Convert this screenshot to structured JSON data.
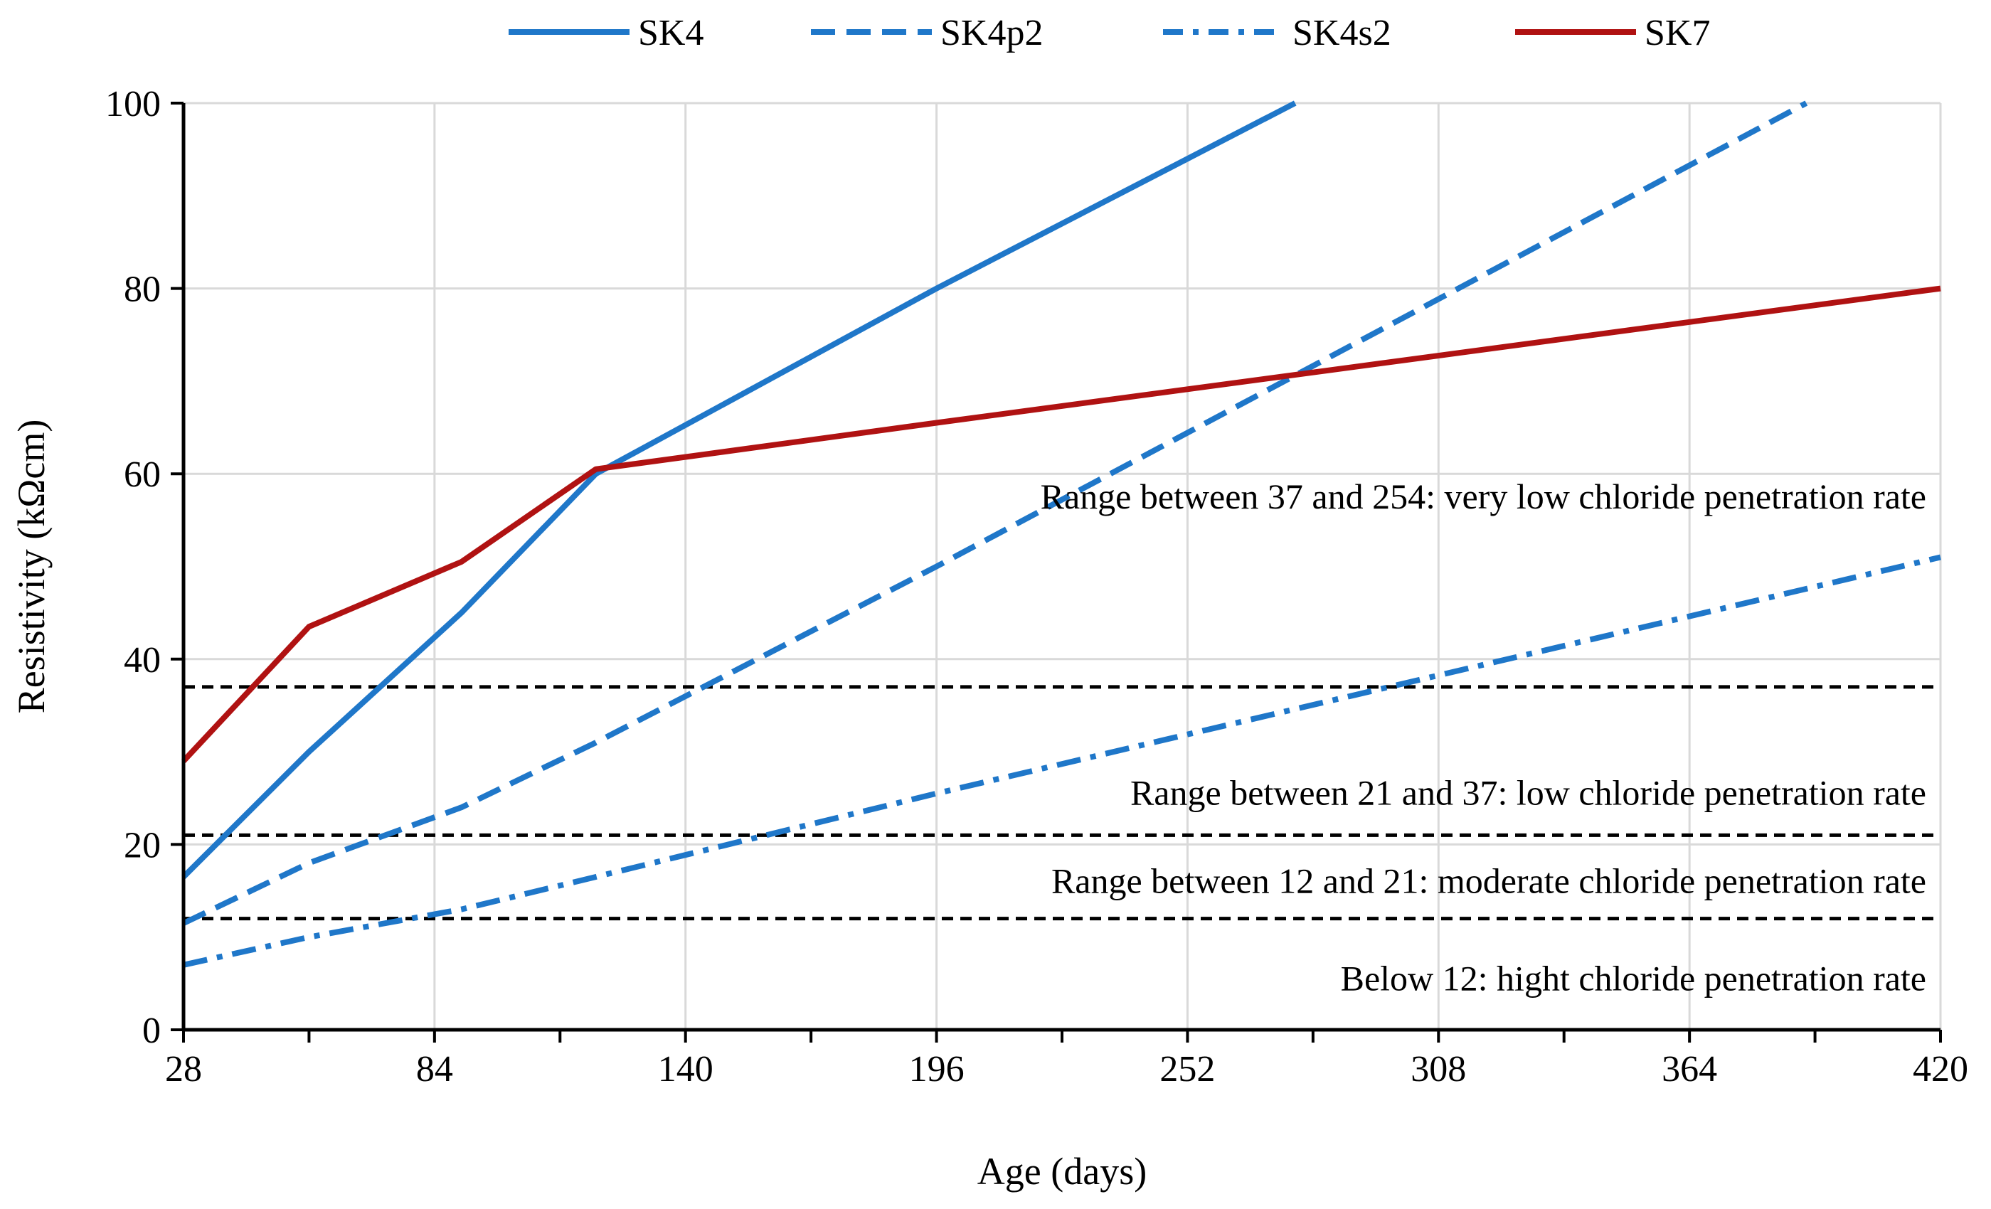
{
  "chart_data": {
    "type": "line",
    "title": "",
    "xlabel": "Age (days)",
    "ylabel": "Resistivity (kΩcm)",
    "xlim": [
      28,
      420
    ],
    "ylim": [
      0,
      100
    ],
    "x_ticks": [
      28,
      84,
      140,
      196,
      252,
      308,
      364,
      420
    ],
    "x_minor_ticks": [
      56,
      112,
      168,
      224,
      280,
      336,
      392
    ],
    "y_ticks": [
      0,
      20,
      40,
      60,
      80,
      100
    ],
    "grid": true,
    "legend_position": "top",
    "series": [
      {
        "name": "SK4",
        "color": "#1f77c9",
        "style": "solid",
        "x": [
          28,
          56,
          90,
          120,
          196,
          276
        ],
        "y": [
          16.5,
          30,
          45,
          60,
          80,
          100
        ]
      },
      {
        "name": "SK4p2",
        "color": "#1f77c9",
        "style": "dashed",
        "x": [
          28,
          56,
          90,
          120,
          196,
          392
        ],
        "y": [
          11.5,
          18,
          24,
          31,
          50,
          100.5
        ]
      },
      {
        "name": "SK4s2",
        "color": "#1f77c9",
        "style": "dashdot",
        "x": [
          28,
          56,
          90,
          120,
          196,
          420
        ],
        "y": [
          7,
          10,
          13,
          16.5,
          25.5,
          51
        ]
      },
      {
        "name": "SK7",
        "color": "#b01212",
        "style": "solid",
        "x": [
          28,
          56,
          90,
          120,
          196,
          420
        ],
        "y": [
          29,
          43.5,
          50.5,
          60.5,
          65.5,
          80
        ]
      }
    ],
    "thresholds": [
      {
        "y": 37,
        "style": "dashed",
        "color": "#000000"
      },
      {
        "y": 21,
        "style": "dashed",
        "color": "#000000"
      },
      {
        "y": 12,
        "style": "dashed",
        "color": "#000000"
      }
    ],
    "annotations": [
      {
        "text": "Range between 37 and 254: very low chloride penetration rate",
        "y": 57.5
      },
      {
        "text": "Range between 21 and 37: low chloride penetration rate",
        "y": 25.5
      },
      {
        "text": "Range between 12 and 21: moderate chloride penetration rate",
        "y": 16
      },
      {
        "text": "Below 12: hight chloride penetration rate",
        "y": 5.5
      }
    ]
  }
}
